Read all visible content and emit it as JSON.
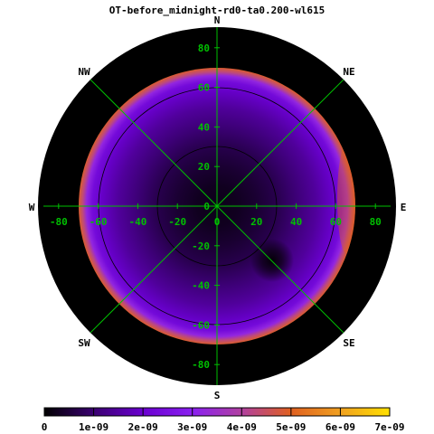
{
  "chart_data": {
    "type": "heatmap",
    "title": "OT-before_midnight-rd0-ta0.200-wl615",
    "directions": [
      {
        "label": "N",
        "angle_deg": 0
      },
      {
        "label": "NE",
        "angle_deg": 45
      },
      {
        "label": "E",
        "angle_deg": 90
      },
      {
        "label": "SE",
        "angle_deg": 135
      },
      {
        "label": "S",
        "angle_deg": 180
      },
      {
        "label": "SW",
        "angle_deg": 225
      },
      {
        "label": "W",
        "angle_deg": 270
      },
      {
        "label": "NW",
        "angle_deg": 315
      }
    ],
    "x_ticks": [
      -80,
      -60,
      -40,
      -20,
      0,
      20,
      40,
      60,
      80
    ],
    "y_ticks": [
      -80,
      -60,
      -40,
      -20,
      0,
      20,
      40,
      60,
      80
    ],
    "axis_range": [
      -90,
      90
    ],
    "data_radius": 70,
    "zenith_circles": [
      30,
      60
    ],
    "dark_spot": {
      "x": 28,
      "y": -27,
      "radius": 9
    },
    "colorbar": {
      "min": 0,
      "max": 7e-09,
      "tick_values": [
        0,
        1e-09,
        2e-09,
        3e-09,
        4e-09,
        5e-09,
        6e-09,
        7e-09
      ],
      "tick_labels": [
        "0",
        "1e-09",
        "2e-09",
        "3e-09",
        "4e-09",
        "5e-09",
        "6e-09",
        "7e-09"
      ],
      "palette": [
        "#000000",
        "#3a0070",
        "#6a00d0",
        "#8a20f0",
        "#b040a0",
        "#e06020",
        "#f0a020",
        "#ffe000"
      ]
    },
    "radial_profile": [
      {
        "r": 0,
        "value": 2.2e-10
      },
      {
        "r": 10,
        "value": 2.8e-10
      },
      {
        "r": 20,
        "value": 4.5e-10
      },
      {
        "r": 30,
        "value": 6.8e-10
      },
      {
        "r": 40,
        "value": 1.05e-09
      },
      {
        "r": 50,
        "value": 1.45e-09
      },
      {
        "r": 58,
        "value": 1.9e-09
      },
      {
        "r": 63,
        "value": 2.3e-09
      },
      {
        "r": 66,
        "value": 3.2e-09
      },
      {
        "r": 68,
        "value": 4.3e-09
      },
      {
        "r": 70,
        "value": 4.9e-09
      }
    ]
  }
}
